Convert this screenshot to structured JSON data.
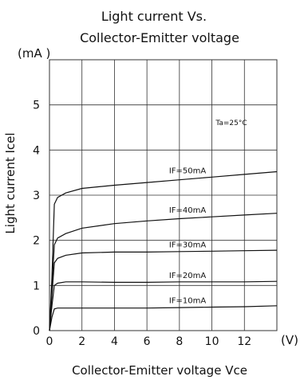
{
  "chart_data": {
    "type": "line",
    "title_line1": "Light  current Vs.",
    "title_line2": "Collector-Emitter voltage",
    "ylabel": "Light current Icel",
    "yunit": "(mA )",
    "xlabel": "Collector-Emitter voltage Vce",
    "xunit": "(V)",
    "annotation": "Ta=25°C",
    "xlim": [
      0,
      14
    ],
    "ylim": [
      0,
      6
    ],
    "x_ticks": [
      "0",
      "2",
      "4",
      "6",
      "8",
      "10",
      "12"
    ],
    "y_ticks": [
      "0",
      "1",
      "2",
      "3",
      "4",
      "5"
    ],
    "grid": true,
    "colors": {
      "line": "#111111",
      "grid": "#333333"
    },
    "series": [
      {
        "name": "IF=50mA",
        "x": [
          0,
          0.15,
          0.3,
          0.5,
          1,
          2,
          4,
          6,
          8,
          10,
          12,
          14
        ],
        "y": [
          0,
          1.2,
          2.8,
          2.95,
          3.05,
          3.15,
          3.22,
          3.28,
          3.34,
          3.4,
          3.46,
          3.52
        ]
      },
      {
        "name": "IF=40mA",
        "x": [
          0,
          0.15,
          0.3,
          0.5,
          1,
          2,
          4,
          6,
          8,
          10,
          12,
          14
        ],
        "y": [
          0,
          1,
          1.9,
          2.05,
          2.15,
          2.27,
          2.37,
          2.43,
          2.48,
          2.52,
          2.56,
          2.6
        ]
      },
      {
        "name": "IF=30mA",
        "x": [
          0,
          0.15,
          0.3,
          0.5,
          1,
          2,
          4,
          6,
          8,
          10,
          12,
          14
        ],
        "y": [
          0,
          0.8,
          1.5,
          1.6,
          1.67,
          1.72,
          1.74,
          1.74,
          1.75,
          1.76,
          1.77,
          1.78
        ]
      },
      {
        "name": "IF=20mA",
        "x": [
          0,
          0.15,
          0.3,
          0.5,
          1,
          2,
          4,
          6,
          8,
          10,
          12,
          14
        ],
        "y": [
          0,
          0.55,
          1.0,
          1.05,
          1.08,
          1.08,
          1.07,
          1.07,
          1.08,
          1.08,
          1.08,
          1.09
        ]
      },
      {
        "name": "IF=10mA",
        "x": [
          0,
          0.15,
          0.3,
          0.5,
          1,
          2,
          4,
          6,
          8,
          10,
          12,
          14
        ],
        "y": [
          0,
          0.3,
          0.48,
          0.5,
          0.5,
          0.5,
          0.5,
          0.5,
          0.51,
          0.52,
          0.53,
          0.55
        ]
      }
    ]
  }
}
